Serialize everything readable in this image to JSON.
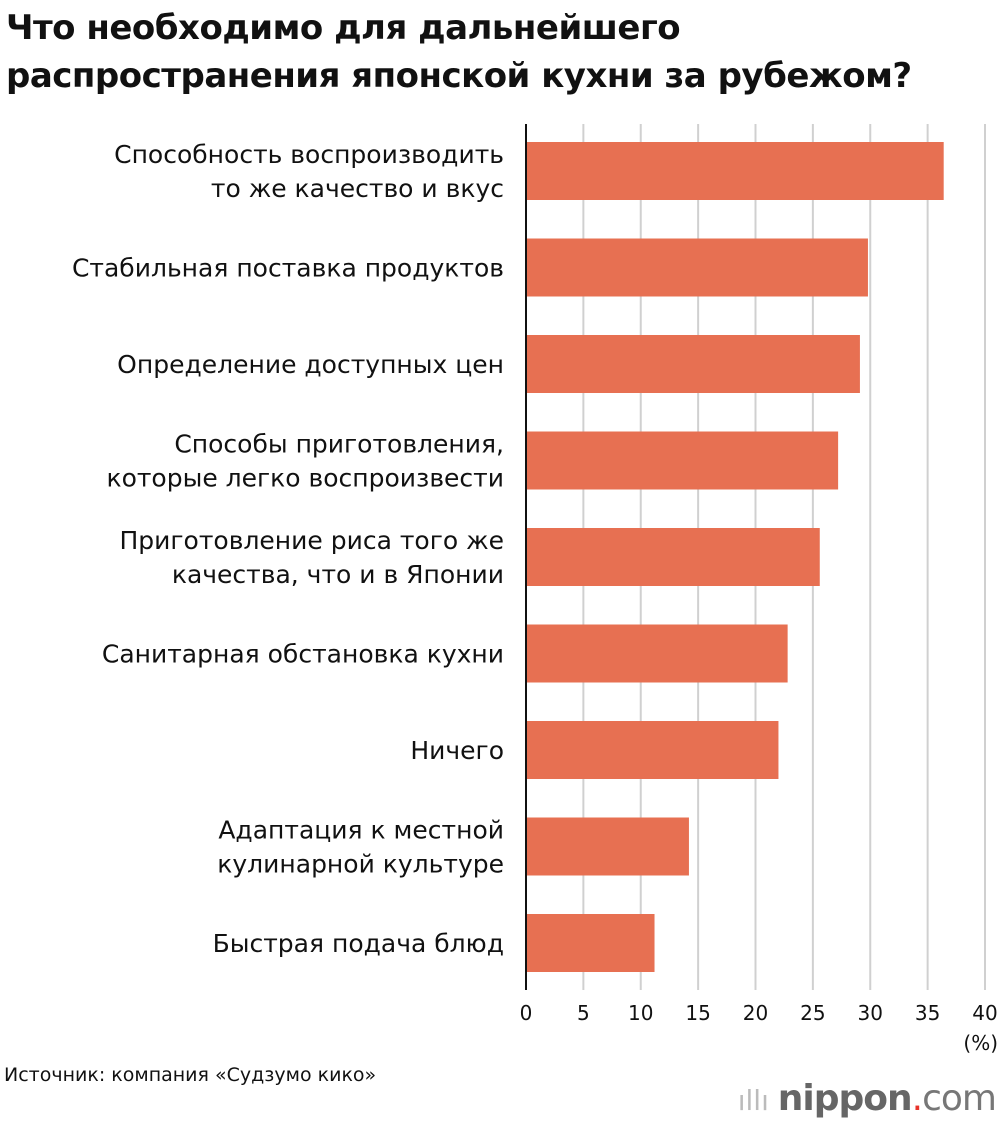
{
  "title": [
    "Что необходимо для дальнейшего",
    "распространения японской кухни за рубежом?"
  ],
  "source": "Источник: компания «Судзумо кико»",
  "logo": "nippon.com",
  "chart_data": {
    "type": "bar",
    "orientation": "horizontal",
    "title": "Что необходимо для дальнейшего распространения японской кухни за рубежом?",
    "categories": [
      [
        "Способность воспроизводить",
        "то же качество и вкус"
      ],
      [
        "Стабильная поставка продуктов"
      ],
      [
        "Определение доступных цен"
      ],
      [
        "Способы приготовления,",
        "которые легко воспроизвести"
      ],
      [
        "Приготовление риса того же",
        "качества, что и в Японии"
      ],
      [
        "Санитарная обстановка кухни"
      ],
      [
        "Ничего"
      ],
      [
        "Адаптация к местной",
        "кулинарной культуре"
      ],
      [
        "Быстрая подача блюд"
      ]
    ],
    "values": [
      36.4,
      29.8,
      29.1,
      27.2,
      25.6,
      22.8,
      22.0,
      14.2,
      11.2
    ],
    "xlim": [
      0,
      40
    ],
    "xticks": [
      "0",
      "5",
      "10",
      "15",
      "20",
      "25",
      "30",
      "35",
      "40"
    ],
    "xunit": "(%)",
    "grid": true,
    "color": "#e77052"
  }
}
